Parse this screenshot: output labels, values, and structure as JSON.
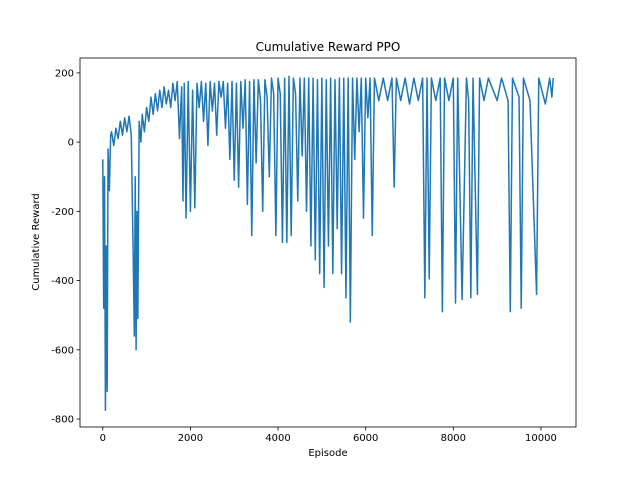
{
  "chart_data": {
    "type": "line",
    "title": "Cumulative Reward PPO",
    "xlabel": "Episode",
    "ylabel": "Cumulative Reward",
    "xlim": [
      -520,
      10800
    ],
    "ylim": [
      -823,
      243
    ],
    "xticks": [
      0,
      2000,
      4000,
      6000,
      8000,
      10000
    ],
    "yticks": [
      -800,
      -600,
      -400,
      -200,
      0,
      200
    ],
    "grid": false,
    "series": [
      {
        "name": "PPO",
        "color": "#1f77b4",
        "x": [
          0,
          20,
          40,
          60,
          80,
          100,
          120,
          150,
          180,
          200,
          250,
          300,
          350,
          400,
          450,
          500,
          550,
          600,
          650,
          700,
          720,
          740,
          760,
          780,
          800,
          830,
          870,
          900,
          950,
          1000,
          1050,
          1100,
          1150,
          1200,
          1250,
          1300,
          1350,
          1400,
          1450,
          1500,
          1550,
          1600,
          1650,
          1700,
          1750,
          1800,
          1830,
          1860,
          1900,
          1950,
          2000,
          2050,
          2100,
          2150,
          2200,
          2250,
          2300,
          2350,
          2400,
          2450,
          2500,
          2550,
          2600,
          2650,
          2700,
          2750,
          2800,
          2850,
          2900,
          2950,
          3000,
          3050,
          3100,
          3150,
          3200,
          3250,
          3300,
          3350,
          3400,
          3450,
          3500,
          3550,
          3600,
          3650,
          3700,
          3750,
          3800,
          3850,
          3900,
          3950,
          4000,
          4050,
          4100,
          4150,
          4200,
          4250,
          4300,
          4350,
          4400,
          4450,
          4500,
          4550,
          4600,
          4650,
          4700,
          4750,
          4800,
          4850,
          4900,
          4950,
          5000,
          5050,
          5100,
          5150,
          5200,
          5250,
          5300,
          5350,
          5400,
          5450,
          5500,
          5550,
          5600,
          5650,
          5700,
          5750,
          5800,
          5850,
          5900,
          5950,
          6000,
          6050,
          6100,
          6150,
          6200,
          6300,
          6400,
          6500,
          6600,
          6650,
          6700,
          6800,
          6900,
          7000,
          7100,
          7200,
          7300,
          7350,
          7400,
          7450,
          7500,
          7600,
          7700,
          7750,
          7800,
          7900,
          8000,
          8050,
          8100,
          8200,
          8300,
          8350,
          8400,
          8450,
          8550,
          8600,
          8700,
          8800,
          9000,
          9100,
          9250,
          9300,
          9350,
          9500,
          9550,
          9600,
          9750,
          9900,
          9950,
          10100,
          10200,
          10250,
          10280
        ],
        "values": [
          -50,
          -480,
          -100,
          -775,
          -300,
          -720,
          -20,
          -140,
          20,
          30,
          -10,
          40,
          10,
          60,
          20,
          70,
          30,
          75,
          20,
          -380,
          -560,
          -100,
          -600,
          -200,
          -510,
          60,
          0,
          80,
          30,
          100,
          60,
          130,
          80,
          140,
          90,
          150,
          100,
          160,
          110,
          150,
          100,
          170,
          120,
          175,
          10,
          160,
          -170,
          170,
          -220,
          175,
          -200,
          150,
          -190,
          170,
          100,
          175,
          60,
          170,
          -10,
          175,
          90,
          170,
          20,
          175,
          130,
          175,
          40,
          170,
          -50,
          175,
          -110,
          170,
          -130,
          175,
          40,
          180,
          -180,
          175,
          -270,
          180,
          -60,
          180,
          120,
          -200,
          180,
          130,
          -100,
          185,
          140,
          -270,
          185,
          140,
          -290,
          185,
          -290,
          190,
          -270,
          185,
          140,
          -170,
          185,
          -40,
          185,
          -200,
          185,
          -300,
          185,
          -340,
          180,
          -380,
          185,
          -420,
          180,
          -300,
          185,
          -380,
          180,
          -250,
          185,
          -380,
          185,
          -450,
          185,
          -520,
          185,
          -50,
          185,
          30,
          185,
          -220,
          185,
          70,
          185,
          -270,
          185,
          120,
          185,
          120,
          185,
          -130,
          185,
          120,
          185,
          110,
          185,
          120,
          185,
          -450,
          185,
          -395,
          185,
          120,
          185,
          -490,
          185,
          120,
          185,
          -465,
          185,
          -455,
          185,
          120,
          -450,
          185,
          -440,
          185,
          120,
          185,
          120,
          185,
          120,
          -490,
          185,
          130,
          -480,
          185,
          120,
          -440,
          185,
          110,
          185,
          130,
          185
        ]
      }
    ]
  }
}
